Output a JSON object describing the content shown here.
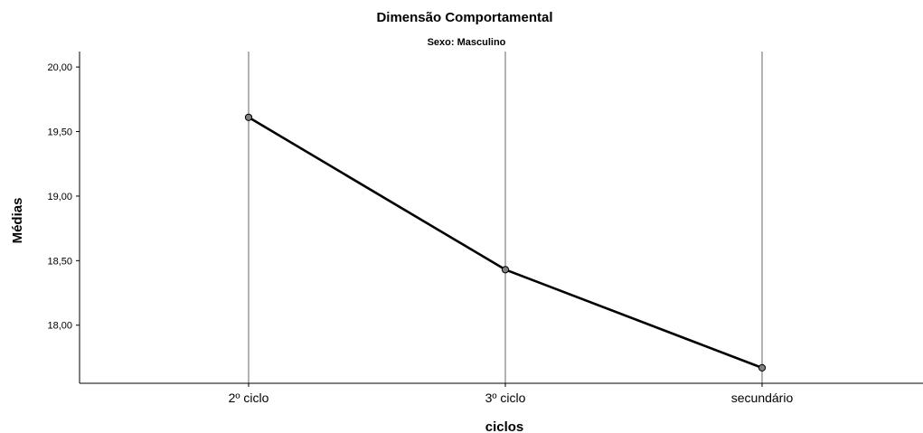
{
  "chart_data": {
    "type": "line",
    "title": "Dimensão Comportamental",
    "subtitle": "Sexo: Masculino",
    "xlabel": "ciclos",
    "ylabel": "Médias",
    "categories": [
      "2º ciclo",
      "3º ciclo",
      "secundário"
    ],
    "series": [
      {
        "values": [
          19.61,
          18.43,
          17.67
        ]
      }
    ],
    "ylim": [
      17.55,
      20.12
    ],
    "yticks": [
      "18,00",
      "18,50",
      "19,00",
      "19,50",
      "20,00"
    ],
    "ytick_values": [
      18.0,
      18.5,
      19.0,
      19.5,
      20.0
    ],
    "grid": "vertical lines at categories",
    "colors": {
      "line": "#000000",
      "marker_fill": "#808080",
      "grid": "#808080",
      "axis": "#000000"
    }
  }
}
